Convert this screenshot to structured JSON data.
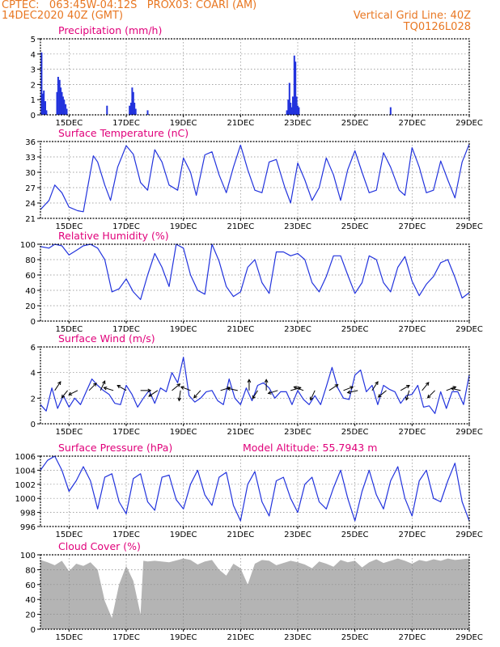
{
  "header": {
    "line1": "CPTEC:   063:45W-04:12S   PROX03: COARI (AM)",
    "line2": "14DEC2020 40Z (GMT)",
    "right1": "Vertical Grid Line: 40Z",
    "right2": "TQ0126L028"
  },
  "colors": {
    "header": "#e87722",
    "title": "#e0007a",
    "line": "#2233dd",
    "cloud": "#b4b4b4",
    "arrow": "#000000"
  },
  "shared_axis": {
    "xlim": [
      14.0,
      29.0
    ],
    "ticks": [
      15,
      17,
      19,
      21,
      23,
      25,
      27,
      29
    ],
    "tick_labels": [
      "15DEC",
      "17DEC",
      "19DEC",
      "21DEC",
      "23DEC",
      "25DEC",
      "27DEC",
      "29DEC"
    ]
  },
  "chart_data": [
    {
      "type": "bar",
      "title": "Precipitation (mm/h)",
      "ylim": [
        0,
        5
      ],
      "yticks": [
        "0",
        "1",
        "2",
        "3",
        "4",
        "5"
      ],
      "grid": true,
      "x": [
        14.04,
        14.08,
        14.12,
        14.17,
        14.21,
        14.58,
        14.62,
        14.67,
        14.71,
        14.75,
        14.79,
        14.83,
        14.88,
        14.92,
        16.33,
        17.12,
        17.17,
        17.21,
        17.25,
        17.29,
        17.33,
        17.75,
        22.62,
        22.67,
        22.71,
        22.75,
        22.79,
        22.83,
        22.88,
        22.92,
        22.96,
        23.0,
        23.04,
        26.25
      ],
      "values": [
        4.1,
        1.4,
        1.6,
        0.9,
        0.3,
        1.5,
        2.5,
        2.3,
        1.8,
        1.5,
        1.2,
        1.0,
        0.7,
        0.4,
        0.6,
        0.6,
        0.8,
        1.8,
        1.5,
        0.8,
        0.4,
        0.3,
        0.3,
        1.0,
        2.1,
        0.8,
        0.5,
        1.2,
        3.9,
        3.5,
        1.2,
        0.6,
        0.5,
        0.5
      ]
    },
    {
      "type": "line",
      "title": "Surface Temperature (nC)",
      "ylim": [
        21,
        36
      ],
      "yticks": [
        "21",
        "24",
        "27",
        "30",
        "33",
        "36"
      ],
      "grid": true,
      "x": [
        14.0,
        14.3,
        14.5,
        14.75,
        15.0,
        15.3,
        15.5,
        15.65,
        15.85,
        16.0,
        16.25,
        16.45,
        16.7,
        17.0,
        17.25,
        17.5,
        17.75,
        18.0,
        18.25,
        18.5,
        18.8,
        19.0,
        19.25,
        19.45,
        19.75,
        20.0,
        20.25,
        20.5,
        20.75,
        21.0,
        21.25,
        21.5,
        21.75,
        22.0,
        22.25,
        22.55,
        22.75,
        23.0,
        23.25,
        23.5,
        23.75,
        24.0,
        24.25,
        24.5,
        24.75,
        25.0,
        25.25,
        25.5,
        25.75,
        26.0,
        26.25,
        26.55,
        26.75,
        27.0,
        27.25,
        27.5,
        27.75,
        28.0,
        28.25,
        28.5,
        28.75,
        29.0
      ],
      "values": [
        22.7,
        24.5,
        27.5,
        26.0,
        23.2,
        22.5,
        22.3,
        27.0,
        33.2,
        32.0,
        27.5,
        24.5,
        31.0,
        35.2,
        33.5,
        28.0,
        26.5,
        34.4,
        32.0,
        27.5,
        26.5,
        32.8,
        30.0,
        25.5,
        33.4,
        34.0,
        29.5,
        26.0,
        31.0,
        35.3,
        30.5,
        26.5,
        26.0,
        32.0,
        32.5,
        27.0,
        24.0,
        31.8,
        28.5,
        24.5,
        27.0,
        32.8,
        29.5,
        24.5,
        30.5,
        34.2,
        30.0,
        26.0,
        26.5,
        33.8,
        31.0,
        26.5,
        25.5,
        34.8,
        31.0,
        26.0,
        26.5,
        32.2,
        28.5,
        25.0,
        32.0,
        35.5
      ]
    },
    {
      "type": "line",
      "title": "Relative Humidity (%)",
      "ylim": [
        0,
        100
      ],
      "yticks": [
        "0",
        "20",
        "40",
        "60",
        "80",
        "100"
      ],
      "grid": true,
      "x": [
        14.0,
        14.3,
        14.5,
        14.75,
        15.0,
        15.3,
        15.5,
        15.75,
        16.0,
        16.25,
        16.5,
        16.75,
        17.0,
        17.25,
        17.5,
        17.75,
        18.0,
        18.25,
        18.5,
        18.75,
        19.0,
        19.25,
        19.5,
        19.75,
        20.0,
        20.25,
        20.5,
        20.75,
        21.0,
        21.25,
        21.5,
        21.75,
        22.0,
        22.25,
        22.5,
        22.75,
        23.0,
        23.25,
        23.5,
        23.75,
        24.0,
        24.25,
        24.5,
        24.75,
        25.0,
        25.25,
        25.5,
        25.75,
        26.0,
        26.25,
        26.5,
        26.75,
        27.0,
        27.25,
        27.5,
        27.75,
        28.0,
        28.25,
        28.5,
        28.75,
        29.0
      ],
      "values": [
        97,
        95,
        100,
        98,
        86,
        93,
        98,
        100,
        95,
        80,
        38,
        42,
        55,
        38,
        28,
        60,
        88,
        70,
        45,
        100,
        95,
        60,
        40,
        35,
        100,
        78,
        45,
        32,
        38,
        70,
        80,
        50,
        36,
        90,
        90,
        85,
        88,
        80,
        50,
        38,
        58,
        85,
        85,
        60,
        36,
        50,
        85,
        80,
        50,
        38,
        70,
        84,
        52,
        33,
        48,
        58,
        76,
        80,
        57,
        30,
        37
      ]
    },
    {
      "type": "line",
      "title": "Surface Wind (m/s)",
      "ylim": [
        0,
        6
      ],
      "yticks": [
        "0",
        "2",
        "4",
        "6"
      ],
      "grid": true,
      "x": [
        14.0,
        14.2,
        14.4,
        14.6,
        14.8,
        15.0,
        15.2,
        15.4,
        15.6,
        15.8,
        16.0,
        16.2,
        16.4,
        16.6,
        16.8,
        17.0,
        17.2,
        17.4,
        17.6,
        17.8,
        18.0,
        18.2,
        18.4,
        18.6,
        18.8,
        19.0,
        19.2,
        19.4,
        19.6,
        19.8,
        20.0,
        20.2,
        20.4,
        20.6,
        20.8,
        21.0,
        21.2,
        21.4,
        21.6,
        21.8,
        22.0,
        22.2,
        22.4,
        22.6,
        22.8,
        23.0,
        23.2,
        23.4,
        23.6,
        23.8,
        24.0,
        24.2,
        24.4,
        24.6,
        24.8,
        25.0,
        25.2,
        25.4,
        25.6,
        25.8,
        26.0,
        26.2,
        26.4,
        26.6,
        26.8,
        27.0,
        27.2,
        27.4,
        27.6,
        27.8,
        28.0,
        28.2,
        28.4,
        28.6,
        28.8,
        29.0
      ],
      "values": [
        1.5,
        1.0,
        2.8,
        1.2,
        2.2,
        1.3,
        2.0,
        1.5,
        2.5,
        3.5,
        3.0,
        2.6,
        2.3,
        1.6,
        1.5,
        3.0,
        2.3,
        1.3,
        2.0,
        2.6,
        1.6,
        2.8,
        2.5,
        4.0,
        3.2,
        5.2,
        2.2,
        1.7,
        2.0,
        2.5,
        2.6,
        1.8,
        1.5,
        3.5,
        2.0,
        1.5,
        2.8,
        1.8,
        3.0,
        3.2,
        2.8,
        2.0,
        2.5,
        2.5,
        1.5,
        2.6,
        1.9,
        1.5,
        2.2,
        1.5,
        2.9,
        4.4,
        2.8,
        2.0,
        1.9,
        3.8,
        4.2,
        2.5,
        3.0,
        1.5,
        3.0,
        2.7,
        2.5,
        1.6,
        2.2,
        2.3,
        3.0,
        1.3,
        1.4,
        0.8,
        2.5,
        1.2,
        2.5,
        2.5,
        1.5,
        3.8
      ],
      "vectors": [
        {
          "x": 14.5,
          "u": 0.8,
          "v": 1.2
        },
        {
          "x": 14.95,
          "u": -0.8,
          "v": -1.0
        },
        {
          "x": 15.3,
          "u": -1.2,
          "v": -0.6
        },
        {
          "x": 15.7,
          "u": 1.0,
          "v": 1.0
        },
        {
          "x": 16.1,
          "u": 0.6,
          "v": 1.3
        },
        {
          "x": 16.55,
          "u": -1.3,
          "v": 0.4
        },
        {
          "x": 17.0,
          "u": -1.2,
          "v": 0.7
        },
        {
          "x": 17.5,
          "u": 1.4,
          "v": 0.0
        },
        {
          "x": 18.1,
          "u": -1.2,
          "v": -0.8
        },
        {
          "x": 18.6,
          "u": 1.1,
          "v": 0.9
        },
        {
          "x": 18.9,
          "u": -0.2,
          "v": -1.4
        },
        {
          "x": 19.25,
          "u": -1.3,
          "v": 0.5
        },
        {
          "x": 19.6,
          "u": -0.9,
          "v": -1.0
        },
        {
          "x": 20.3,
          "u": 1.3,
          "v": 0.4
        },
        {
          "x": 20.9,
          "u": -1.4,
          "v": 0.3
        },
        {
          "x": 21.3,
          "u": 0.0,
          "v": 1.5
        },
        {
          "x": 21.6,
          "u": -0.7,
          "v": -1.1
        },
        {
          "x": 21.9,
          "u": 0.0,
          "v": 1.5
        },
        {
          "x": 22.3,
          "u": -1.3,
          "v": -0.4
        },
        {
          "x": 22.75,
          "u": 1.4,
          "v": 0.4
        },
        {
          "x": 23.2,
          "u": -1.3,
          "v": 0.5
        },
        {
          "x": 23.6,
          "u": -0.6,
          "v": -1.3
        },
        {
          "x": 24.1,
          "u": 1.2,
          "v": 0.8
        },
        {
          "x": 24.6,
          "u": 1.3,
          "v": 0.5
        },
        {
          "x": 25.1,
          "u": -1.4,
          "v": -0.3
        },
        {
          "x": 25.6,
          "u": 0.8,
          "v": 1.2
        },
        {
          "x": 26.1,
          "u": -1.1,
          "v": -0.9
        },
        {
          "x": 26.6,
          "u": 1.2,
          "v": 0.7
        },
        {
          "x": 26.9,
          "u": -0.4,
          "v": -1.3
        },
        {
          "x": 27.35,
          "u": 0.9,
          "v": 1.1
        },
        {
          "x": 27.8,
          "u": -1.0,
          "v": -1.0
        },
        {
          "x": 28.2,
          "u": 1.3,
          "v": 0.5
        },
        {
          "x": 28.7,
          "u": -1.3,
          "v": 0.3
        }
      ]
    },
    {
      "type": "line",
      "title": "Surface Pressure (hPa)",
      "annotation": "Model Altitude: 55.7943 m",
      "ylim": [
        996,
        1006
      ],
      "yticks": [
        "996",
        "998",
        "1000",
        "1002",
        "1004",
        "1006"
      ],
      "grid": true,
      "x": [
        14.0,
        14.25,
        14.5,
        14.75,
        15.0,
        15.25,
        15.5,
        15.75,
        16.0,
        16.25,
        16.5,
        16.75,
        17.0,
        17.25,
        17.5,
        17.75,
        18.0,
        18.25,
        18.5,
        18.75,
        19.0,
        19.25,
        19.5,
        19.75,
        20.0,
        20.25,
        20.5,
        20.75,
        21.0,
        21.25,
        21.5,
        21.75,
        22.0,
        22.25,
        22.5,
        22.75,
        23.0,
        23.25,
        23.5,
        23.75,
        24.0,
        24.25,
        24.5,
        24.75,
        25.0,
        25.25,
        25.5,
        25.75,
        26.0,
        26.25,
        26.5,
        26.75,
        27.0,
        27.25,
        27.5,
        27.75,
        28.0,
        28.25,
        28.5,
        28.75,
        29.0
      ],
      "values": [
        1004.0,
        1005.4,
        1006.0,
        1004.0,
        1001.0,
        1002.5,
        1004.5,
        1002.5,
        998.5,
        1003.0,
        1003.5,
        999.5,
        997.8,
        1002.8,
        1003.5,
        999.5,
        998.3,
        1003.0,
        1003.3,
        999.8,
        998.5,
        1002.0,
        1004.0,
        1000.5,
        999.0,
        1003.0,
        1003.7,
        999.0,
        996.8,
        1002.0,
        1003.8,
        999.5,
        997.5,
        1002.5,
        1003.0,
        1000.0,
        998.0,
        1002.0,
        1003.0,
        999.5,
        998.5,
        1001.5,
        1004.0,
        1000.0,
        996.8,
        1001.0,
        1004.0,
        1000.5,
        998.5,
        1002.5,
        1004.5,
        1000.0,
        997.5,
        1002.5,
        1004.0,
        1000.0,
        999.5,
        1002.5,
        1005.0,
        999.5,
        996.8
      ]
    },
    {
      "type": "area",
      "title": "Cloud Cover (%)",
      "ylim": [
        0,
        100
      ],
      "yticks": [
        "0",
        "20",
        "40",
        "60",
        "80",
        "100"
      ],
      "grid": true,
      "x": [
        14.0,
        14.25,
        14.5,
        14.75,
        15.0,
        15.25,
        15.5,
        15.75,
        16.0,
        16.25,
        16.5,
        16.75,
        17.0,
        17.25,
        17.5,
        17.6,
        17.75,
        18.0,
        18.5,
        19.0,
        19.25,
        19.5,
        19.75,
        20.0,
        20.25,
        20.5,
        20.75,
        21.0,
        21.25,
        21.5,
        21.75,
        22.0,
        22.25,
        22.5,
        22.75,
        23.0,
        23.25,
        23.5,
        23.75,
        24.0,
        24.25,
        24.5,
        24.75,
        25.0,
        25.25,
        25.5,
        25.75,
        26.0,
        26.25,
        26.5,
        26.75,
        27.0,
        27.25,
        27.5,
        27.75,
        28.0,
        28.25,
        28.5,
        28.75,
        29.0
      ],
      "values": [
        93,
        90,
        86,
        92,
        78,
        88,
        85,
        90,
        80,
        38,
        15,
        60,
        85,
        65,
        20,
        92,
        91,
        92,
        90,
        95,
        93,
        87,
        91,
        93,
        80,
        72,
        88,
        82,
        60,
        88,
        93,
        92,
        86,
        89,
        92,
        90,
        87,
        82,
        91,
        88,
        84,
        93,
        90,
        92,
        83,
        90,
        94,
        89,
        92,
        95,
        92,
        88,
        93,
        91,
        94,
        92,
        95,
        93,
        94,
        95
      ]
    }
  ]
}
